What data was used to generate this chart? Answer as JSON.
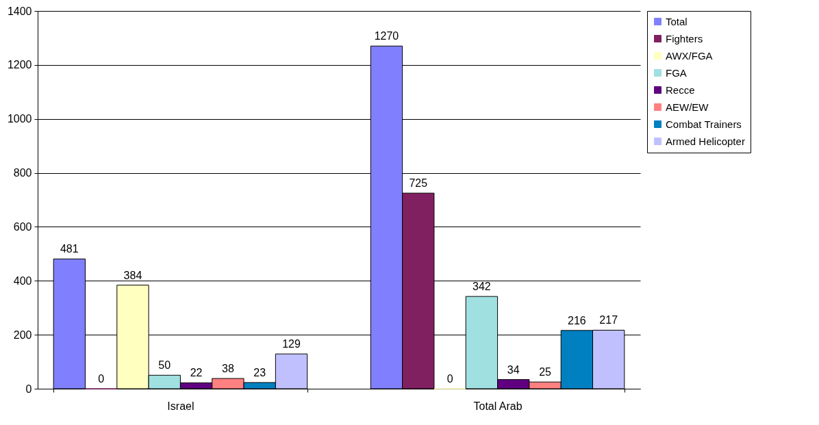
{
  "chart_data": {
    "type": "bar",
    "categories": [
      "Israel",
      "Total Arab"
    ],
    "series": [
      {
        "name": "Total",
        "color": "#8080ff",
        "values": [
          481,
          1270
        ]
      },
      {
        "name": "Fighters",
        "color": "#802060",
        "values": [
          0,
          725
        ]
      },
      {
        "name": "AWX/FGA",
        "color": "#ffffc0",
        "values": [
          384,
          0
        ]
      },
      {
        "name": "FGA",
        "color": "#a0e0e0",
        "values": [
          50,
          342
        ]
      },
      {
        "name": "Recce",
        "color": "#600080",
        "values": [
          22,
          34
        ]
      },
      {
        "name": "AEW/EW",
        "color": "#ff8080",
        "values": [
          38,
          25
        ]
      },
      {
        "name": "Combat Trainers",
        "color": "#0080c0",
        "values": [
          23,
          216
        ]
      },
      {
        "name": "Armed Helicopter",
        "color": "#c0c0ff",
        "values": [
          129,
          217
        ]
      }
    ],
    "ylim": [
      0,
      1400
    ],
    "yticks": [
      0,
      200,
      400,
      600,
      800,
      1000,
      1200,
      1400
    ],
    "grid": "y",
    "legend": "right",
    "data_labels": true
  }
}
